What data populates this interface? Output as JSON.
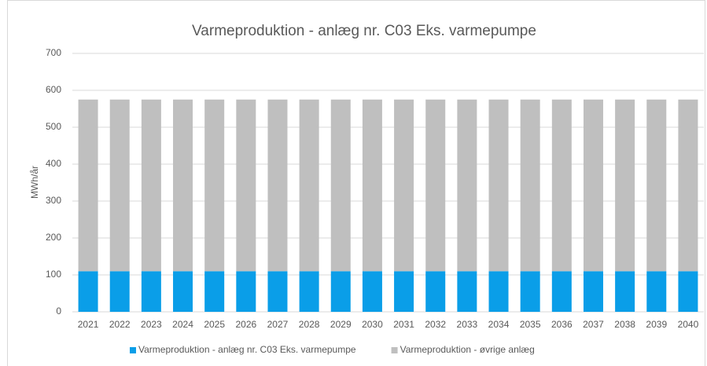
{
  "chart_data": {
    "type": "stacked_bar",
    "title": "Varmeproduktion - anlæg nr. C03 Eks. varmepumpe",
    "y_label": "MWh/år",
    "categories": [
      "2021",
      "2022",
      "2023",
      "2024",
      "2025",
      "2026",
      "2027",
      "2028",
      "2029",
      "2030",
      "2031",
      "2032",
      "2033",
      "2034",
      "2035",
      "2036",
      "2037",
      "2038",
      "2039",
      "2040"
    ],
    "series": [
      {
        "name": "Varmeproduktion - anlæg nr. C03 Eks. varmepumpe",
        "color": "#0a9ee8",
        "values": [
          110,
          110,
          110,
          110,
          110,
          110,
          110,
          110,
          110,
          110,
          110,
          110,
          110,
          110,
          110,
          110,
          110,
          110,
          110,
          110
        ]
      },
      {
        "name": "Varmeproduktion - øvrige anlæg",
        "color": "#bfbfbf",
        "values": [
          465,
          465,
          465,
          465,
          465,
          465,
          465,
          465,
          465,
          465,
          465,
          465,
          465,
          465,
          465,
          465,
          465,
          465,
          465,
          465
        ]
      }
    ],
    "ylim": [
      0,
      700
    ],
    "yticks": [
      0,
      100,
      200,
      300,
      400,
      500,
      600,
      700
    ],
    "grid": true,
    "legend": "bottom"
  }
}
